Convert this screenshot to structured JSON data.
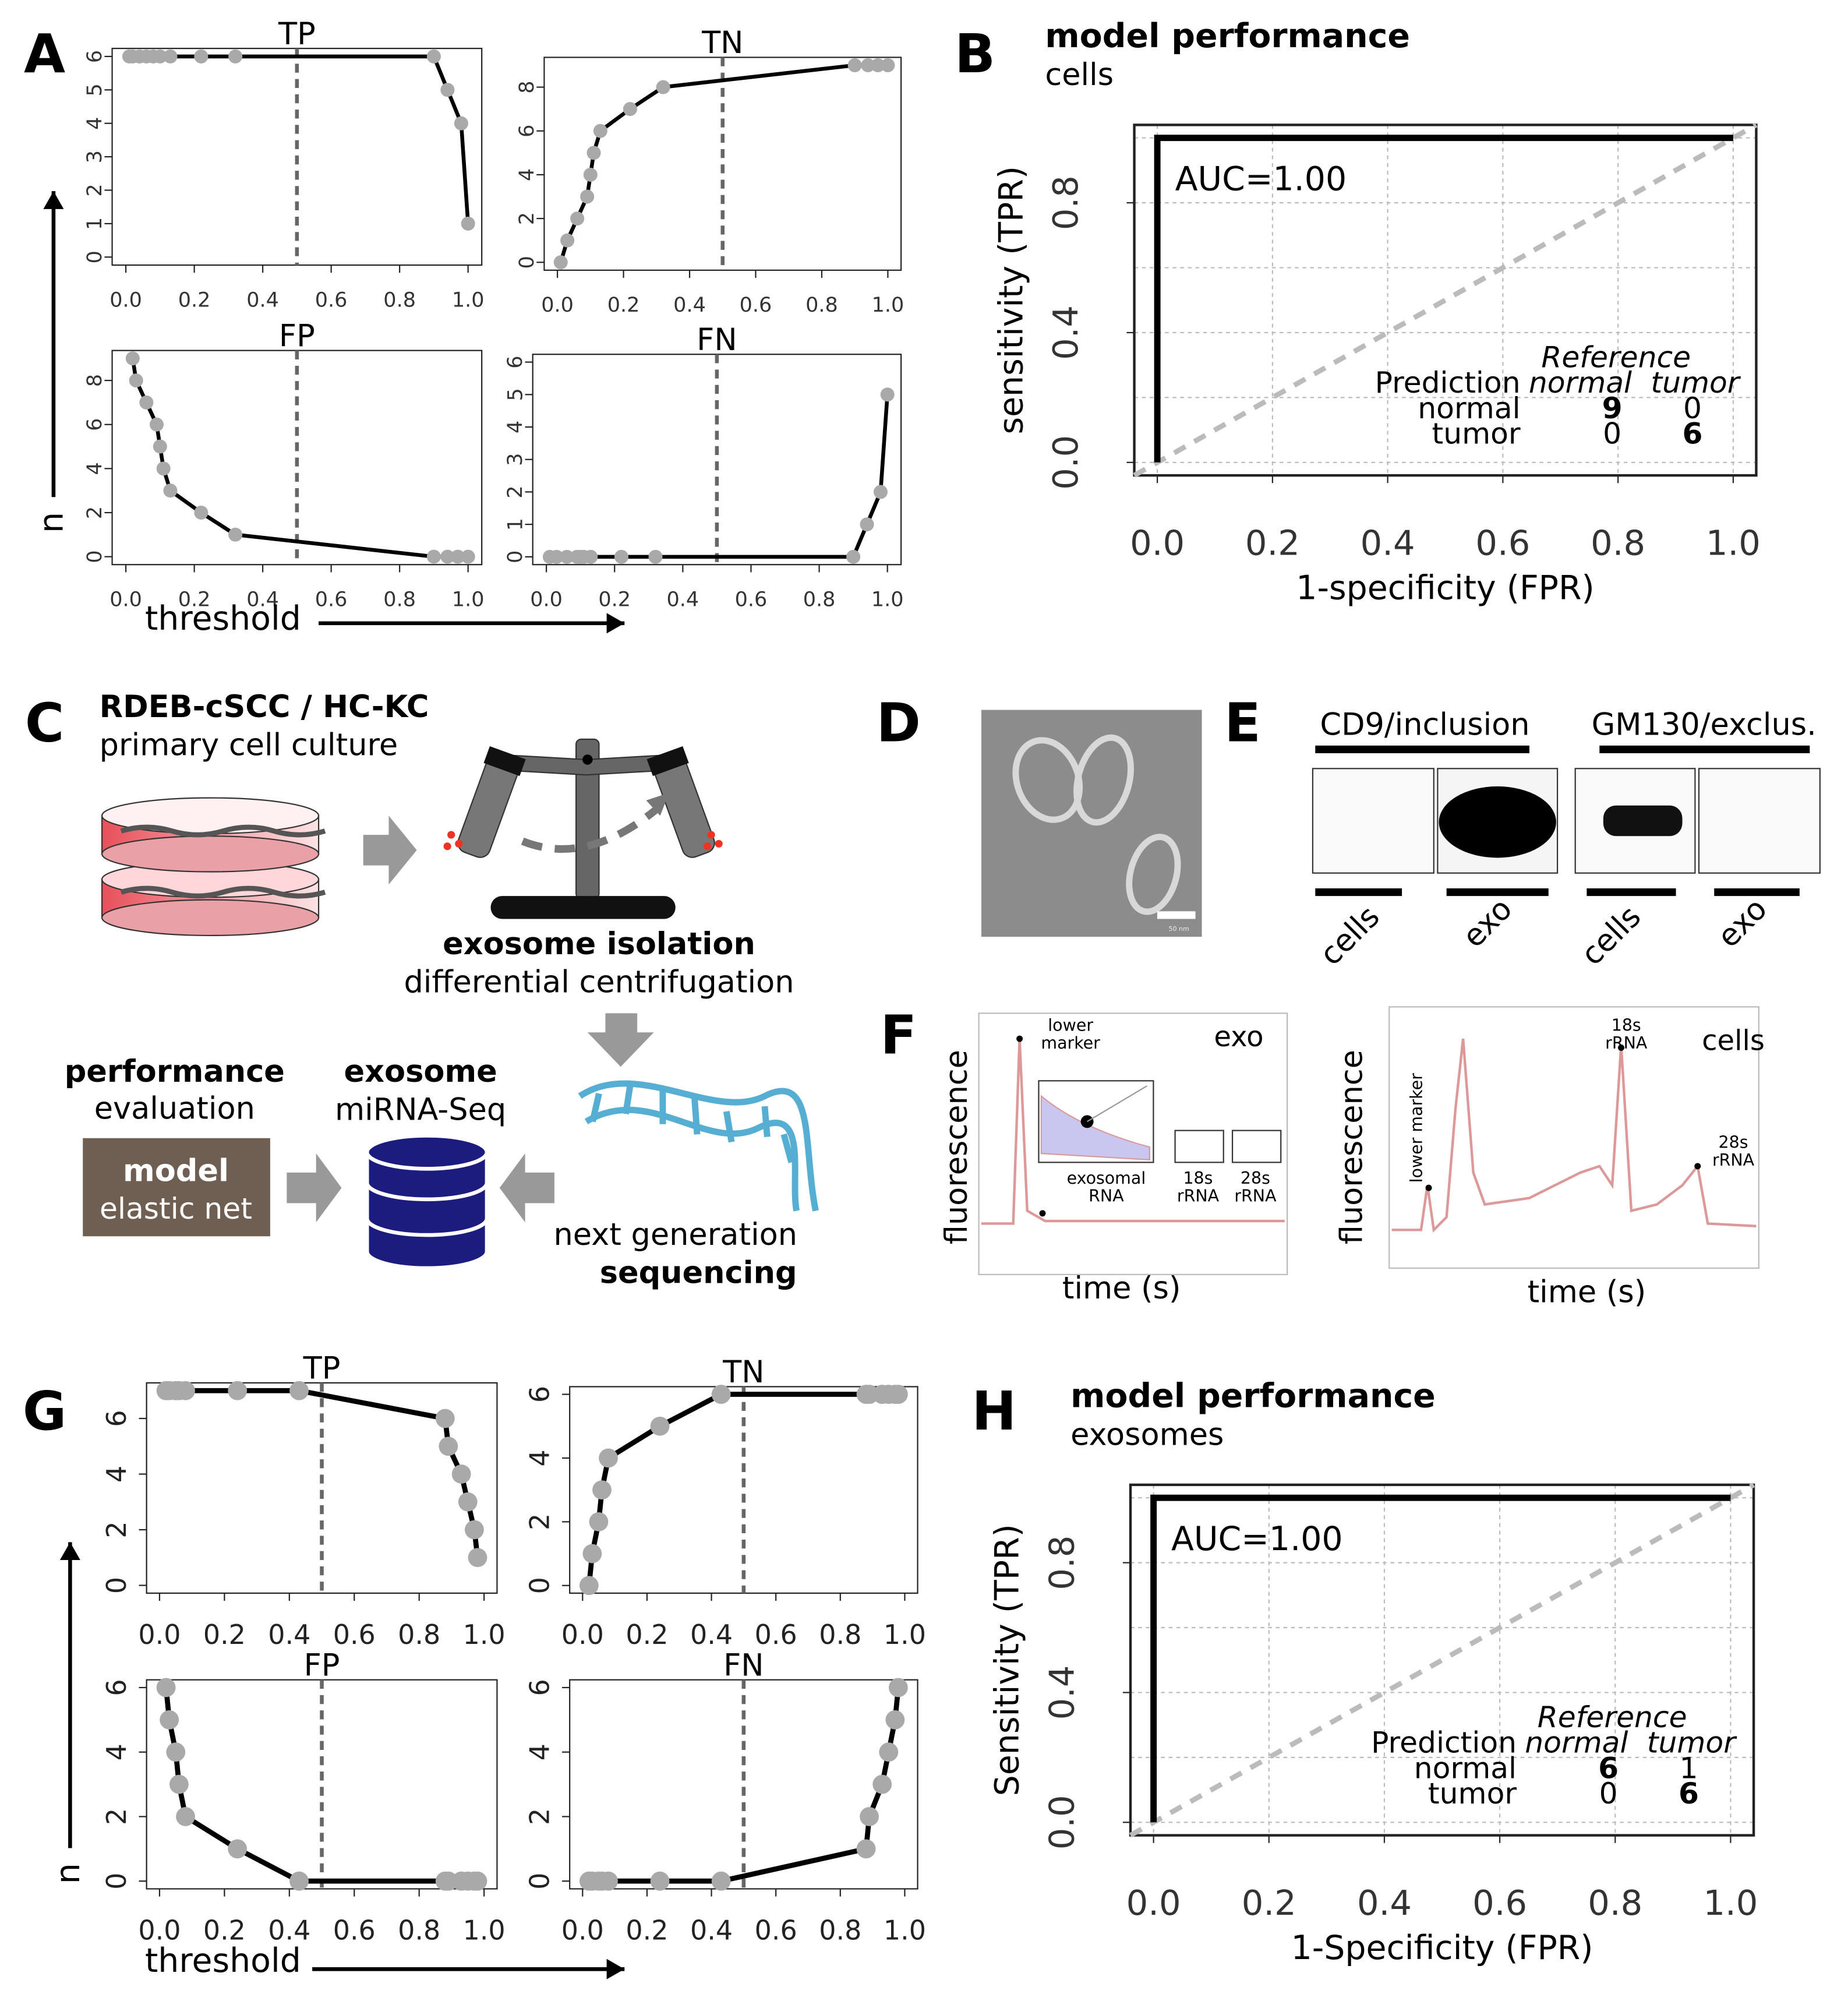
{
  "panels": [
    "A",
    "B",
    "C",
    "D",
    "E",
    "F",
    "G",
    "H"
  ],
  "axes": {
    "A": {
      "y_label": "n",
      "x_label": "threshold"
    },
    "G": {
      "y_label": "n",
      "x_label": "threshold"
    }
  },
  "chart_data": [
    {
      "type": "line",
      "title": "TP",
      "x": [
        0.01,
        0.02,
        0.04,
        0.06,
        0.08,
        0.1,
        0.13,
        0.22,
        0.32,
        0.9,
        0.94,
        0.98,
        1.0
      ],
      "values": [
        6,
        6,
        6,
        6,
        6,
        6,
        6,
        6,
        6,
        6,
        5,
        4,
        1
      ],
      "color": "#000000",
      "marker_color": "#a9a9a9",
      "markers": true,
      "vline": 0.5,
      "xlim": [
        -0.04,
        1.04
      ],
      "ylim": [
        -0.24,
        6.24
      ],
      "xticks": [
        {
          "value": 0,
          "label": "0.0"
        },
        0.2,
        0.4,
        0.6,
        0.8,
        {
          "value": 1,
          "label": "1.0"
        }
      ],
      "yticks": [
        0,
        1,
        2,
        3,
        4,
        5,
        6
      ]
    },
    {
      "type": "line",
      "title": "TN",
      "x": [
        0.01,
        0.03,
        0.06,
        0.09,
        0.1,
        0.11,
        0.13,
        0.22,
        0.32,
        0.9,
        0.94,
        0.97,
        1.0
      ],
      "values": [
        0,
        1,
        2,
        3,
        4,
        5,
        6,
        7,
        8,
        9,
        9,
        9,
        9
      ],
      "color": "#000000",
      "marker_color": "#a9a9a9",
      "markers": true,
      "vline": 0.5,
      "xlim": [
        -0.04,
        1.04
      ],
      "ylim": [
        -0.36,
        9.36
      ],
      "xticks": [
        {
          "value": 0,
          "label": "0.0"
        },
        0.2,
        0.4,
        0.6,
        0.8,
        {
          "value": 1,
          "label": "1.0"
        }
      ],
      "yticks": [
        0,
        2,
        4,
        6,
        8
      ]
    },
    {
      "type": "line",
      "title": "FP",
      "x": [
        0.02,
        0.03,
        0.06,
        0.09,
        0.1,
        0.11,
        0.13,
        0.22,
        0.32,
        0.9,
        0.94,
        0.97,
        1.0
      ],
      "values": [
        9,
        8,
        7,
        6,
        5,
        4,
        3,
        2,
        1,
        0,
        0,
        0,
        0
      ],
      "color": "#000000",
      "marker_color": "#a9a9a9",
      "markers": true,
      "vline": 0.5,
      "xlim": [
        -0.04,
        1.04
      ],
      "ylim": [
        -0.36,
        9.36
      ],
      "xticks": [
        {
          "value": 0,
          "label": "0.0"
        },
        0.2,
        0.4,
        0.6,
        0.8,
        {
          "value": 1,
          "label": "1.0"
        }
      ],
      "yticks": [
        0,
        2,
        4,
        6,
        8
      ]
    },
    {
      "type": "line",
      "title": "FN",
      "x": [
        0.01,
        0.03,
        0.06,
        0.09,
        0.1,
        0.11,
        0.13,
        0.22,
        0.32,
        0.9,
        0.94,
        0.98,
        1.0
      ],
      "values": [
        0,
        0,
        0,
        0,
        0,
        0,
        0,
        0,
        0,
        0,
        1,
        2,
        5
      ],
      "color": "#000000",
      "marker_color": "#a9a9a9",
      "markers": true,
      "vline": 0.5,
      "xlim": [
        -0.04,
        1.04
      ],
      "ylim": [
        -0.24,
        6.24
      ],
      "xticks": [
        {
          "value": 0,
          "label": "0.0"
        },
        0.2,
        0.4,
        0.6,
        0.8,
        {
          "value": 1,
          "label": "1.0"
        }
      ],
      "yticks": [
        0,
        1,
        2,
        3,
        4,
        5,
        6
      ]
    },
    {
      "type": "roc",
      "title": "model performance",
      "subtitle": "cells",
      "x_label": "1-specificity (FPR)",
      "y_label": "sensitivity (TPR)",
      "annotation": "AUC=1.00",
      "x": [
        0,
        0,
        1
      ],
      "values": [
        0,
        1,
        1
      ],
      "color": "#000000",
      "grid": true,
      "xlim": [
        -0.04,
        1.04
      ],
      "ylim": [
        -0.04,
        1.04
      ],
      "xticks": [
        {
          "value": 0,
          "label": "0.0"
        },
        0.2,
        0.4,
        0.6,
        0.8,
        {
          "value": 1,
          "label": "1.0"
        }
      ],
      "yticks": [
        {
          "value": 0,
          "label": "0.0"
        },
        0.4,
        0.8
      ],
      "confusion": {
        "reference": "Reference",
        "prediction": "Prediction",
        "columns": [
          "normal",
          "tumor"
        ],
        "rows": [
          "normal",
          "tumor"
        ],
        "values": [
          [
            9,
            0
          ],
          [
            0,
            6
          ]
        ]
      }
    },
    {
      "type": "line",
      "title": "TP",
      "x": [
        0.02,
        0.03,
        0.05,
        0.06,
        0.08,
        0.24,
        0.43,
        0.88,
        0.89,
        0.93,
        0.95,
        0.97,
        0.98
      ],
      "values": [
        7,
        7,
        7,
        7,
        7,
        7,
        7,
        6,
        5,
        4,
        3,
        2,
        1
      ],
      "color": "#000000",
      "marker_color": "#a9a9a9",
      "markers": true,
      "vline": 0.5,
      "xlim": [
        -0.04,
        1.04
      ],
      "ylim": [
        -0.28,
        7.28
      ],
      "xticks": [
        {
          "value": 0,
          "label": "0.0"
        },
        0.2,
        0.4,
        0.6,
        0.8,
        {
          "value": 1,
          "label": "1.0"
        }
      ],
      "yticks": [
        0,
        2,
        4,
        6
      ]
    },
    {
      "type": "line",
      "title": "TN",
      "x": [
        0.02,
        0.03,
        0.05,
        0.06,
        0.08,
        0.24,
        0.43,
        0.88,
        0.89,
        0.93,
        0.95,
        0.97,
        0.98
      ],
      "values": [
        0,
        1,
        2,
        3,
        4,
        5,
        6,
        6,
        6,
        6,
        6,
        6,
        6
      ],
      "color": "#000000",
      "marker_color": "#a9a9a9",
      "markers": true,
      "vline": 0.5,
      "xlim": [
        -0.04,
        1.04
      ],
      "ylim": [
        -0.24,
        6.24
      ],
      "xticks": [
        {
          "value": 0,
          "label": "0.0"
        },
        0.2,
        0.4,
        0.6,
        0.8,
        {
          "value": 1,
          "label": "1.0"
        }
      ],
      "yticks": [
        0,
        2,
        4,
        6
      ]
    },
    {
      "type": "line",
      "title": "FP",
      "x": [
        0.02,
        0.03,
        0.05,
        0.06,
        0.08,
        0.24,
        0.43,
        0.88,
        0.89,
        0.93,
        0.95,
        0.97,
        0.98
      ],
      "values": [
        6,
        5,
        4,
        3,
        2,
        1,
        0,
        0,
        0,
        0,
        0,
        0,
        0
      ],
      "color": "#000000",
      "marker_color": "#a9a9a9",
      "markers": true,
      "vline": 0.5,
      "xlim": [
        -0.04,
        1.04
      ],
      "ylim": [
        -0.24,
        6.24
      ],
      "xticks": [
        {
          "value": 0,
          "label": "0.0"
        },
        0.2,
        0.4,
        0.6,
        0.8,
        {
          "value": 1,
          "label": "1.0"
        }
      ],
      "yticks": [
        0,
        2,
        4,
        6
      ]
    },
    {
      "type": "line",
      "title": "FN",
      "x": [
        0.02,
        0.03,
        0.05,
        0.06,
        0.08,
        0.24,
        0.43,
        0.88,
        0.89,
        0.93,
        0.95,
        0.97,
        0.98
      ],
      "values": [
        0,
        0,
        0,
        0,
        0,
        0,
        0,
        1,
        2,
        3,
        4,
        5,
        6
      ],
      "color": "#000000",
      "marker_color": "#a9a9a9",
      "markers": true,
      "vline": 0.5,
      "xlim": [
        -0.04,
        1.04
      ],
      "ylim": [
        -0.24,
        6.24
      ],
      "xticks": [
        {
          "value": 0,
          "label": "0.0"
        },
        0.2,
        0.4,
        0.6,
        0.8,
        {
          "value": 1,
          "label": "1.0"
        }
      ],
      "yticks": [
        0,
        2,
        4,
        6
      ]
    },
    {
      "type": "roc",
      "title": "model performance",
      "subtitle": "exosomes",
      "x_label": "1-Specificity (FPR)",
      "y_label": "Sensitivity (TPR)",
      "annotation": "AUC=1.00",
      "x": [
        0,
        0,
        1
      ],
      "values": [
        0,
        1,
        1
      ],
      "color": "#000000",
      "grid": true,
      "xlim": [
        -0.04,
        1.04
      ],
      "ylim": [
        -0.04,
        1.04
      ],
      "xticks": [
        {
          "value": 0,
          "label": "0.0"
        },
        0.2,
        0.4,
        0.6,
        0.8,
        {
          "value": 1,
          "label": "1.0"
        }
      ],
      "yticks": [
        {
          "value": 0,
          "label": "0.0"
        },
        0.4,
        0.8
      ],
      "confusion": {
        "reference": "Reference",
        "prediction": "Prediction",
        "columns": [
          "normal",
          "tumor"
        ],
        "rows": [
          "normal",
          "tumor"
        ],
        "values": [
          [
            6,
            1
          ],
          [
            0,
            6
          ]
        ]
      }
    }
  ],
  "workflow": {
    "culture": {
      "title": "RDEB-cSCC / HC-KC",
      "subtitle": "primary cell culture"
    },
    "isolation": {
      "title": "exosome isolation",
      "subtitle": "differential centrifugation"
    },
    "evaluation": {
      "title": "performance",
      "subtitle": "evaluation"
    },
    "model": {
      "title": "model",
      "subtitle": "elastic net"
    },
    "data": {
      "title": "exosome",
      "subtitle": "miRNA-Seq"
    },
    "sequencing": {
      "title": "next generation",
      "subtitle": "sequencing"
    }
  },
  "micrograph": {
    "scale": "50 nm"
  },
  "blot": {
    "groups": [
      "CD9/inclusion",
      "GM130/exclus."
    ],
    "lanes": [
      "cells",
      "exo",
      "cells",
      "exo"
    ]
  },
  "electropherograms": [
    {
      "sample": "exo",
      "y_label": "fluorescence",
      "x_label": "time (s)",
      "peaks": [
        "lower marker",
        "exosomal RNA",
        "18s rRNA",
        "28s rRNA"
      ]
    },
    {
      "sample": "cells",
      "y_label": "fluorescence",
      "x_label": "time (s)",
      "peaks": [
        "lower marker",
        "18s rRNA",
        "28s rRNA"
      ]
    }
  ]
}
